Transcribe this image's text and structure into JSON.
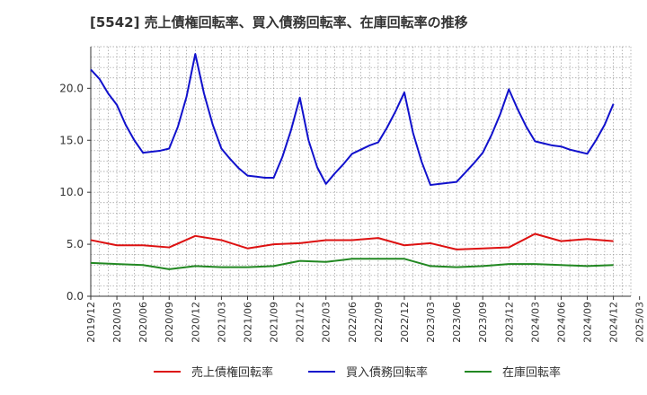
{
  "chart_data": {
    "type": "line",
    "title": "[5542]  売上債権回転率、買入債務回転率、在庫回転率の推移",
    "xlabel": "",
    "ylabel": "",
    "ylim": [
      0,
      24
    ],
    "yticks": [
      0,
      5,
      10,
      15,
      20
    ],
    "ytick_labels": [
      "0.0",
      "5.0",
      "10.0",
      "15.0",
      "20.0"
    ],
    "x_range_index": [
      0,
      62
    ],
    "xtick_labels": [
      "2019/12",
      "2020/03",
      "2020/06",
      "2020/09",
      "2020/12",
      "2021/03",
      "2021/06",
      "2021/09",
      "2021/12",
      "2022/03",
      "2022/06",
      "2022/09",
      "2022/12",
      "2023/03",
      "2023/06",
      "2023/09",
      "2023/12",
      "2024/03",
      "2024/06",
      "2024/09",
      "2024/12",
      "2025/03"
    ],
    "grid": true,
    "legend_position": "bottom",
    "series": [
      {
        "name": "売上債権回転率",
        "color": "#dd1111",
        "x": [
          0,
          3,
          6,
          9,
          12,
          15,
          18,
          21,
          24,
          27,
          30,
          33,
          36,
          39,
          42,
          45,
          48,
          51,
          54,
          57,
          60
        ],
        "values": [
          5.4,
          4.9,
          4.9,
          4.7,
          5.8,
          5.4,
          4.6,
          5.0,
          5.1,
          5.4,
          5.4,
          5.6,
          4.9,
          5.1,
          4.5,
          4.6,
          4.7,
          6.0,
          5.3,
          5.5,
          5.3
        ]
      },
      {
        "name": "買入債務回転率",
        "color": "#1111cc",
        "x": [
          0,
          1,
          2,
          3,
          4,
          5,
          6,
          7,
          8,
          9,
          10,
          11,
          12,
          13,
          14,
          15,
          16,
          17,
          18,
          19,
          20,
          21,
          22,
          23,
          24,
          25,
          26,
          27,
          28,
          29,
          30,
          31,
          32,
          33,
          34,
          35,
          36,
          37,
          38,
          39,
          40,
          41,
          42,
          43,
          44,
          45,
          46,
          47,
          48,
          49,
          50,
          51,
          52,
          53,
          54,
          55,
          56,
          57,
          58,
          59,
          60
        ],
        "values": [
          21.8,
          20.9,
          19.5,
          18.4,
          16.5,
          15.0,
          13.8,
          13.9,
          14.0,
          14.2,
          16.3,
          19.2,
          23.3,
          19.5,
          16.5,
          14.2,
          13.2,
          12.3,
          11.6,
          11.5,
          11.4,
          11.4,
          13.4,
          16.0,
          19.1,
          15.0,
          12.4,
          10.8,
          11.8,
          12.7,
          13.7,
          14.1,
          14.5,
          14.8,
          16.2,
          17.8,
          19.6,
          15.7,
          12.9,
          10.7,
          10.8,
          10.9,
          11.0,
          11.9,
          12.8,
          13.8,
          15.5,
          17.5,
          19.9,
          18.0,
          16.3,
          14.9,
          14.7,
          14.5,
          14.4,
          14.1,
          13.9,
          13.7,
          15.0,
          16.5,
          18.5
        ]
      },
      {
        "name": "在庫回転率",
        "color": "#228822",
        "x": [
          0,
          3,
          6,
          9,
          12,
          15,
          18,
          21,
          24,
          27,
          30,
          33,
          36,
          39,
          42,
          45,
          48,
          51,
          54,
          57,
          60
        ],
        "values": [
          3.2,
          3.1,
          3.0,
          2.6,
          2.9,
          2.8,
          2.8,
          2.9,
          3.4,
          3.3,
          3.6,
          3.6,
          3.6,
          2.9,
          2.8,
          2.9,
          3.1,
          3.1,
          3.0,
          2.9,
          3.0
        ]
      }
    ]
  }
}
